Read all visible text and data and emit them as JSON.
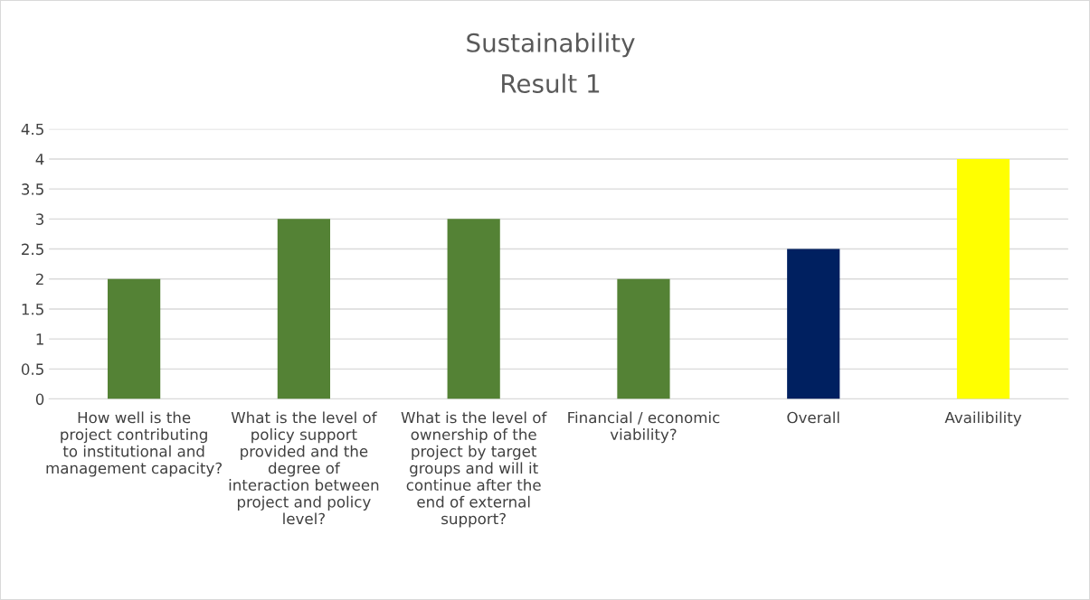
{
  "chart_data": {
    "type": "bar",
    "title": "Sustainability",
    "subtitle": "Result 1",
    "categories": [
      "How well is the project contributing to institutional and management capacity?",
      "What is the level of policy support provided and the degree of interaction between project and policy level?",
      "What is the level of ownership of the project by target groups and will it continue after the end of external support?",
      "Financial / economic viability?",
      "Overall",
      "Availibility"
    ],
    "values": [
      2,
      3,
      3,
      2,
      2.5,
      4
    ],
    "colors": [
      "#548235",
      "#548235",
      "#548235",
      "#548235",
      "#002060",
      "#ffff00"
    ],
    "ylim": [
      0,
      4.5
    ],
    "yticks": [
      0,
      0.5,
      1,
      1.5,
      2,
      2.5,
      3,
      3.5,
      4,
      4.5
    ],
    "grid": "y"
  }
}
